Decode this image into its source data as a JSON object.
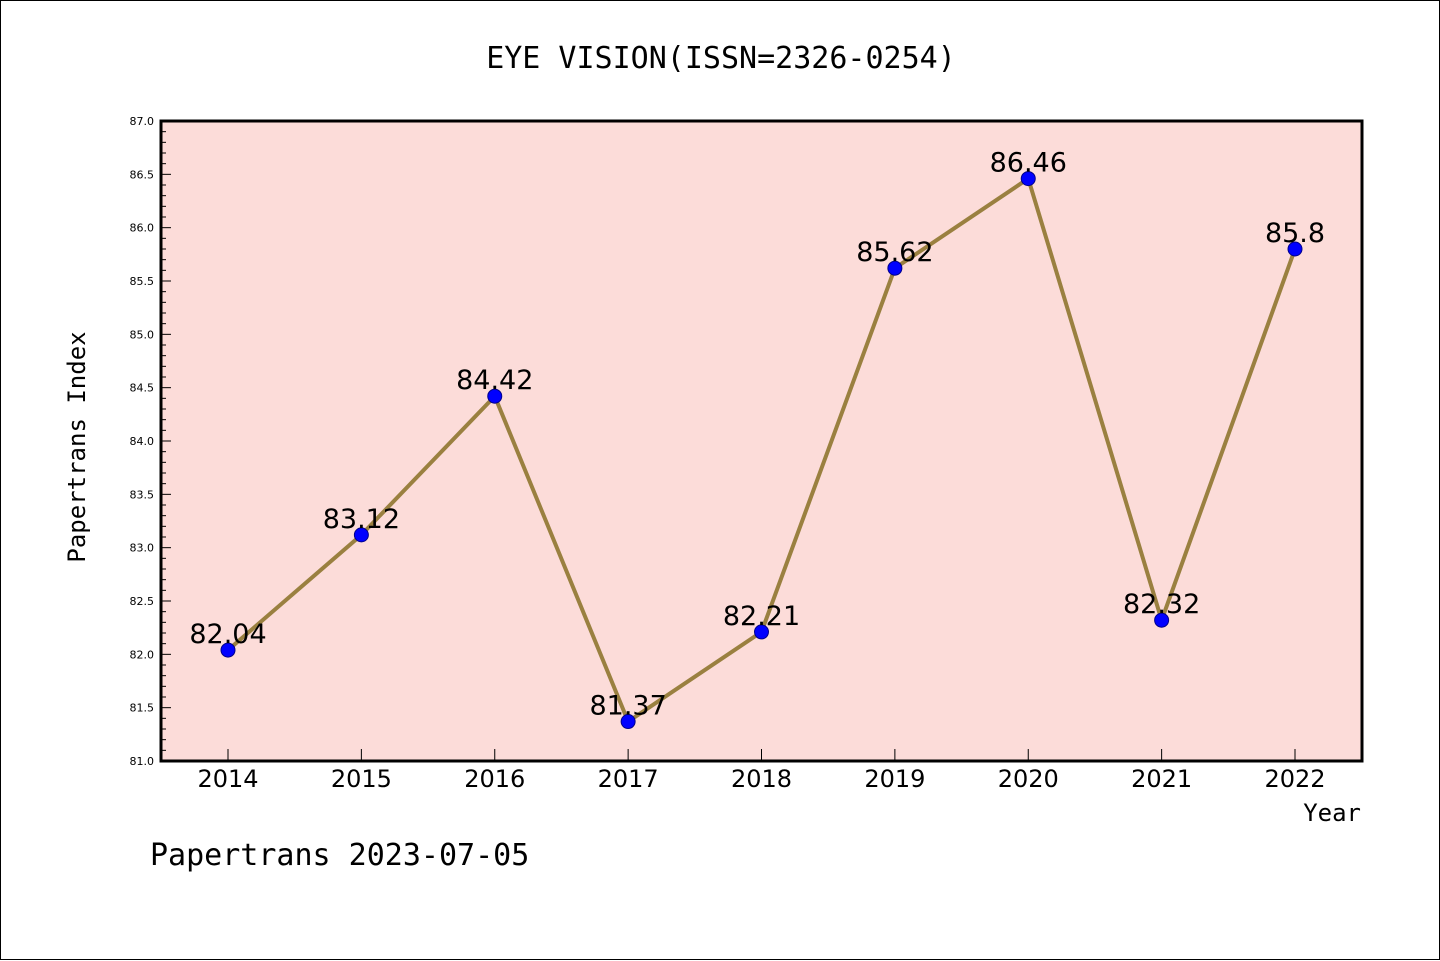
{
  "footer": "Papertrans 2023-07-05",
  "colors": {
    "plot_background": "#fcdcd9",
    "line": "#9a8040",
    "marker_fill": "#0000ff",
    "marker_stroke": "#00008b",
    "axis": "#000000"
  },
  "chart_data": {
    "type": "line",
    "title": "EYE VISION(ISSN=2326-0254)",
    "xlabel": "Year",
    "ylabel": "Papertrans Index",
    "categories": [
      "2014",
      "2015",
      "2016",
      "2017",
      "2018",
      "2019",
      "2020",
      "2021",
      "2022"
    ],
    "series": [
      {
        "values": [
          82.04,
          83.12,
          84.42,
          81.37,
          82.21,
          85.62,
          86.46,
          82.32,
          85.8
        ],
        "labels": [
          "82.04",
          "83.12",
          "84.42",
          "81.37",
          "82.21",
          "85.62",
          "86.46",
          "82.32",
          "85.8"
        ]
      }
    ],
    "ylim": [
      81.0,
      87.0
    ],
    "yticks": [
      "81.0",
      "81.5",
      "82.0",
      "82.5",
      "83.0",
      "83.5",
      "84.0",
      "84.5",
      "85.0",
      "85.5",
      "86.0",
      "86.5",
      "87.0"
    ],
    "grid": false,
    "legend": "none"
  }
}
